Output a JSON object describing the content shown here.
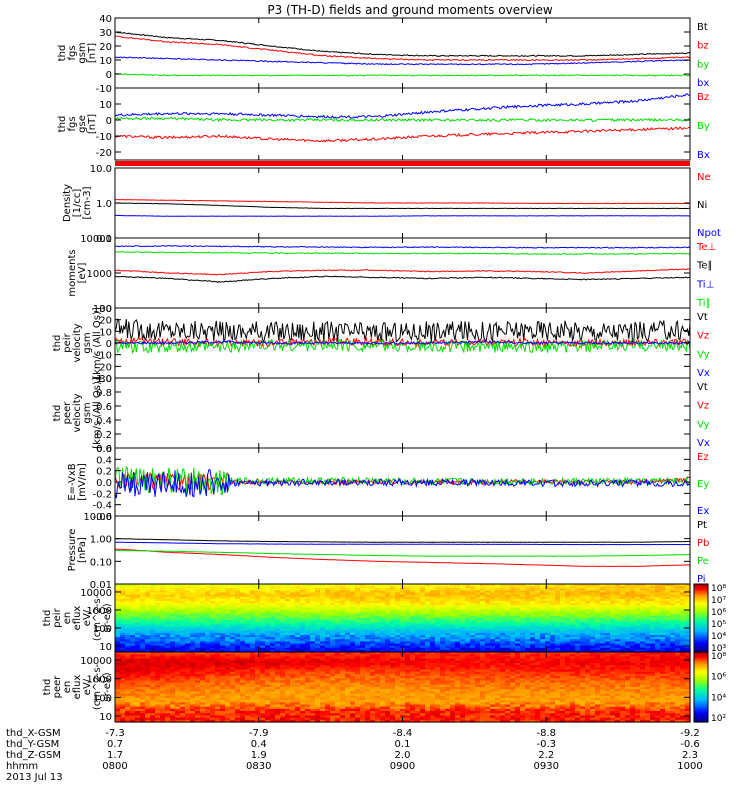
{
  "title": "P3 (TH-D) fields and ground moments overview",
  "colors": {
    "black": "#000000",
    "red": "#ff0000",
    "green": "#00dd00",
    "blue": "#0000ff"
  },
  "chart_data": [
    {
      "type": "line",
      "ylabel": [
        "thd",
        "fgs",
        "gsm",
        "[nT]"
      ],
      "yticks": [
        "40",
        "30",
        "20",
        "10",
        "0",
        "-10"
      ],
      "ylim": [
        -10,
        40
      ],
      "grid": false,
      "series": [
        {
          "name": "Bt",
          "color": "#000000",
          "values": [
            30,
            26,
            24,
            20,
            16,
            14,
            13,
            13,
            13,
            13,
            14,
            15
          ]
        },
        {
          "name": "bz",
          "color": "#ff0000",
          "values": [
            27,
            23,
            21,
            17,
            13,
            11,
            10,
            10,
            10,
            10,
            11,
            12
          ]
        },
        {
          "name": "by",
          "color": "#00dd00",
          "values": [
            0,
            -1,
            -1,
            -1,
            -1,
            -1,
            -1,
            -1,
            -1,
            -1,
            -1,
            -1
          ]
        },
        {
          "name": "bx",
          "color": "#0000ff",
          "values": [
            12,
            11,
            10,
            9,
            8,
            7,
            7,
            7,
            7,
            8,
            9,
            10
          ]
        }
      ]
    },
    {
      "type": "line",
      "ylabel": [
        "thd",
        "fgs",
        "gse",
        "[nT]"
      ],
      "yticks": [
        "10",
        "0",
        "-10",
        "-20"
      ],
      "ylim": [
        -25,
        20
      ],
      "grid": false,
      "series": [
        {
          "name": "Bz",
          "color": "#ff0000",
          "values": [
            -10,
            -11,
            -10,
            -12,
            -13,
            -12,
            -10,
            -9,
            -8,
            -7,
            -6,
            -5
          ]
        },
        {
          "name": "By",
          "color": "#00dd00",
          "values": [
            1,
            1,
            0,
            0,
            0,
            0,
            0,
            0,
            0,
            0,
            0,
            0
          ]
        },
        {
          "name": "Bx",
          "color": "#0000ff",
          "values": [
            3,
            4,
            4,
            3,
            2,
            2,
            5,
            7,
            9,
            10,
            12,
            16
          ]
        }
      ]
    },
    {
      "type": "line",
      "ylabel": [
        "Density",
        "[1/cc]",
        "[cm-3]"
      ],
      "yticks": [
        "10.0",
        "1.0",
        "0.1"
      ],
      "ylim": [
        0.1,
        10
      ],
      "scale": "log",
      "grid": false,
      "series": [
        {
          "name": "Ne",
          "color": "#ff0000",
          "values": [
            1.25,
            1.2,
            1.15,
            1.1,
            1.05,
            1.0,
            1.0,
            1.0,
            0.98,
            0.97,
            0.97,
            0.97
          ]
        },
        {
          "name": "Ni",
          "color": "#000000",
          "values": [
            1.0,
            0.95,
            0.85,
            0.75,
            0.7,
            0.7,
            0.7,
            0.7,
            0.7,
            0.7,
            0.7,
            0.7
          ]
        },
        {
          "name": "Npot",
          "color": "#0000ff",
          "values": [
            0.44,
            0.42,
            0.42,
            0.42,
            0.42,
            0.42,
            0.43,
            0.43,
            0.43,
            0.43,
            0.43,
            0.43
          ]
        }
      ]
    },
    {
      "type": "line",
      "ylabel": [
        "moments",
        "[eV]"
      ],
      "yticks": [
        "10000",
        "1000",
        "100"
      ],
      "ylim": [
        100,
        10000
      ],
      "scale": "log",
      "grid": false,
      "series": [
        {
          "name": "Te⊥",
          "color": "#ff0000",
          "values": [
            1200,
            1000,
            900,
            1100,
            1200,
            1200,
            1100,
            1150,
            1100,
            1000,
            1150,
            1300
          ]
        },
        {
          "name": "Te∥",
          "color": "#000000",
          "values": [
            800,
            700,
            550,
            700,
            800,
            750,
            700,
            750,
            700,
            650,
            700,
            750
          ]
        },
        {
          "name": "Ti⊥",
          "color": "#0000ff",
          "values": [
            5800,
            5900,
            5800,
            5600,
            5500,
            5400,
            5500,
            5400,
            5300,
            5300,
            5300,
            5400
          ]
        },
        {
          "name": "Ti∥",
          "color": "#00dd00",
          "values": [
            4000,
            3900,
            3800,
            3700,
            3700,
            3600,
            3600,
            3600,
            3500,
            3500,
            3500,
            3600
          ]
        }
      ]
    },
    {
      "type": "line",
      "ylabel": [
        "thd",
        "peir",
        "velocity",
        "gsm",
        "[km/s (All Qs)]"
      ],
      "yticks": [
        "30",
        "20",
        "10",
        "0",
        "-10",
        "-20",
        "-30"
      ],
      "ylim": [
        -30,
        30
      ],
      "grid": false,
      "series": [
        {
          "name": "Vt",
          "color": "#000000",
          "values": [
            12,
            11,
            10,
            10,
            10,
            9,
            10,
            10,
            11,
            10,
            10,
            11
          ]
        },
        {
          "name": "Vz",
          "color": "#ff0000",
          "values": [
            2,
            1,
            0,
            0,
            1,
            1,
            0,
            0,
            1,
            0,
            0,
            1
          ]
        },
        {
          "name": "Vy",
          "color": "#00dd00",
          "values": [
            -3,
            -4,
            -3,
            -2,
            -2,
            -2,
            -3,
            -3,
            -4,
            -3,
            -2,
            -2
          ]
        },
        {
          "name": "Vx",
          "color": "#0000ff",
          "values": [
            0,
            0,
            1,
            0,
            0,
            0,
            0,
            1,
            0,
            0,
            0,
            0
          ]
        }
      ]
    },
    {
      "type": "line",
      "ylabel": [
        "thd",
        "peer",
        "velocity",
        "gsm",
        "[km/s (All Qs)]"
      ],
      "yticks": [
        "1.0",
        "0.8",
        "0.6",
        "0.4",
        "0.2",
        "0.0"
      ],
      "ylim": [
        0,
        1
      ],
      "grid": false,
      "series": [
        {
          "name": "Vt",
          "color": "#000000",
          "values": []
        },
        {
          "name": "Vz",
          "color": "#ff0000",
          "values": []
        },
        {
          "name": "Vy",
          "color": "#00dd00",
          "values": []
        },
        {
          "name": "Vx",
          "color": "#0000ff",
          "values": []
        }
      ]
    },
    {
      "type": "line",
      "ylabel": [
        "E=-VxB",
        "[mV/m]"
      ],
      "yticks": [
        "0.6",
        "0.4",
        "0.2",
        "0.0",
        "-0.2",
        "-0.4",
        "-0.6"
      ],
      "ylim": [
        -0.6,
        0.6
      ],
      "grid": false,
      "series": [
        {
          "name": "Ez",
          "color": "#ff0000",
          "values": [
            0,
            0,
            0,
            0,
            0,
            0,
            0,
            0,
            0,
            0,
            0,
            0.05
          ]
        },
        {
          "name": "Ey",
          "color": "#00dd00",
          "values": [
            0.05,
            0.03,
            0.02,
            0.02,
            0.02,
            0.02,
            0.01,
            0.01,
            0.01,
            0.01,
            0.01,
            0.02
          ]
        },
        {
          "name": "Ex",
          "color": "#0000ff",
          "values": [
            -0.05,
            -0.03,
            -0.02,
            -0.02,
            -0.01,
            -0.01,
            -0.01,
            -0.01,
            -0.02,
            -0.02,
            -0.02,
            -0.03
          ]
        }
      ]
    },
    {
      "type": "line",
      "ylabel": [
        "Pressure",
        "[nPa]"
      ],
      "yticks": [
        "10.00",
        "1.00",
        "0.10",
        "0.01"
      ],
      "ylim": [
        0.01,
        10
      ],
      "scale": "log",
      "grid": false,
      "series": [
        {
          "name": "Pt",
          "color": "#000000",
          "values": [
            1.0,
            0.9,
            0.8,
            0.75,
            0.72,
            0.7,
            0.7,
            0.7,
            0.7,
            0.7,
            0.7,
            0.75
          ]
        },
        {
          "name": "Pb",
          "color": "#ff0000",
          "values": [
            0.35,
            0.25,
            0.2,
            0.15,
            0.12,
            0.1,
            0.09,
            0.08,
            0.07,
            0.06,
            0.06,
            0.07
          ]
        },
        {
          "name": "Pe",
          "color": "#00dd00",
          "values": [
            0.3,
            0.28,
            0.25,
            0.22,
            0.2,
            0.18,
            0.17,
            0.17,
            0.17,
            0.17,
            0.18,
            0.2
          ]
        },
        {
          "name": "Pi",
          "color": "#0000ff",
          "values": [
            0.7,
            0.65,
            0.6,
            0.58,
            0.57,
            0.57,
            0.57,
            0.56,
            0.56,
            0.55,
            0.55,
            0.55
          ]
        }
      ]
    },
    {
      "type": "heatmap",
      "ylabel": [
        "thd",
        "peir",
        "en",
        "eflux",
        "eV/",
        "(cm^2-s-",
        "sr-eV)"
      ],
      "yticks": [
        "10000",
        "1000",
        "100",
        "10"
      ],
      "ylim": [
        5,
        20000
      ],
      "scale": "log",
      "colorbar": {
        "ticks": [
          "10⁸",
          "10⁷",
          "10⁶",
          "10⁵",
          "10⁴",
          "10³"
        ],
        "range": [
          3,
          8
        ]
      },
      "rows": [
        [
          6.4,
          6.5,
          6.6,
          6.7,
          6.8,
          6.9
        ],
        [
          6.9,
          6.9,
          7.0,
          7.0,
          7.0,
          7.0
        ],
        [
          6.6,
          6.6,
          6.7,
          6.7,
          6.7,
          6.7
        ],
        [
          5.9,
          5.9,
          6.0,
          6.0,
          6.0,
          6.0
        ],
        [
          5.2,
          5.3,
          5.3,
          5.3,
          5.3,
          5.3
        ],
        [
          4.5,
          4.6,
          4.6,
          4.6,
          4.6,
          4.6
        ],
        [
          4.0,
          4.1,
          4.1,
          4.1,
          4.1,
          4.1
        ],
        [
          3.4,
          3.5,
          3.5,
          3.5,
          3.5,
          3.5
        ]
      ]
    },
    {
      "type": "heatmap",
      "ylabel": [
        "thd",
        "peer",
        "en",
        "eflux",
        "eV/",
        "(cm^2-s-",
        "sr-eV)"
      ],
      "yticks": [
        "10000",
        "1000",
        "100",
        "10"
      ],
      "ylim": [
        5,
        20000
      ],
      "scale": "log",
      "colorbar": {
        "ticks": [
          "10⁸",
          "10⁶",
          "10⁴",
          "10²"
        ],
        "range": [
          1,
          8
        ]
      },
      "rows": [
        [
          7.3,
          7.3,
          7.4,
          7.4,
          7.4,
          7.5
        ],
        [
          7.8,
          7.8,
          7.7,
          7.6,
          7.6,
          7.7
        ],
        [
          7.7,
          7.4,
          7.2,
          7.3,
          7.4,
          7.4
        ],
        [
          7.3,
          7.1,
          7.0,
          7.1,
          7.1,
          7.1
        ],
        [
          7.0,
          6.9,
          6.8,
          6.9,
          6.9,
          6.9
        ],
        [
          6.8,
          6.8,
          6.8,
          6.8,
          6.8,
          6.8
        ],
        [
          7.4,
          7.4,
          7.4,
          7.4,
          7.4,
          7.4
        ],
        [
          7.5,
          7.5,
          7.5,
          7.5,
          7.5,
          7.5
        ]
      ]
    }
  ],
  "xaxis": {
    "row_labels": [
      "thd_X-GSM",
      "thd_Y-GSM",
      "thd_Z-GSM",
      "hhmm"
    ],
    "columns": [
      [
        "-7.3",
        "0.7",
        "1.7",
        "0800"
      ],
      [
        "-7.9",
        "0.4",
        "1.9",
        "0830"
      ],
      [
        "-8.4",
        "0.1",
        "2.0",
        "0900"
      ],
      [
        "-8.8",
        "-0.3",
        "2.2",
        "0930"
      ],
      [
        "-9.2",
        "-0.6",
        "2.3",
        "1000"
      ]
    ],
    "date": "2013 Jul 13"
  }
}
